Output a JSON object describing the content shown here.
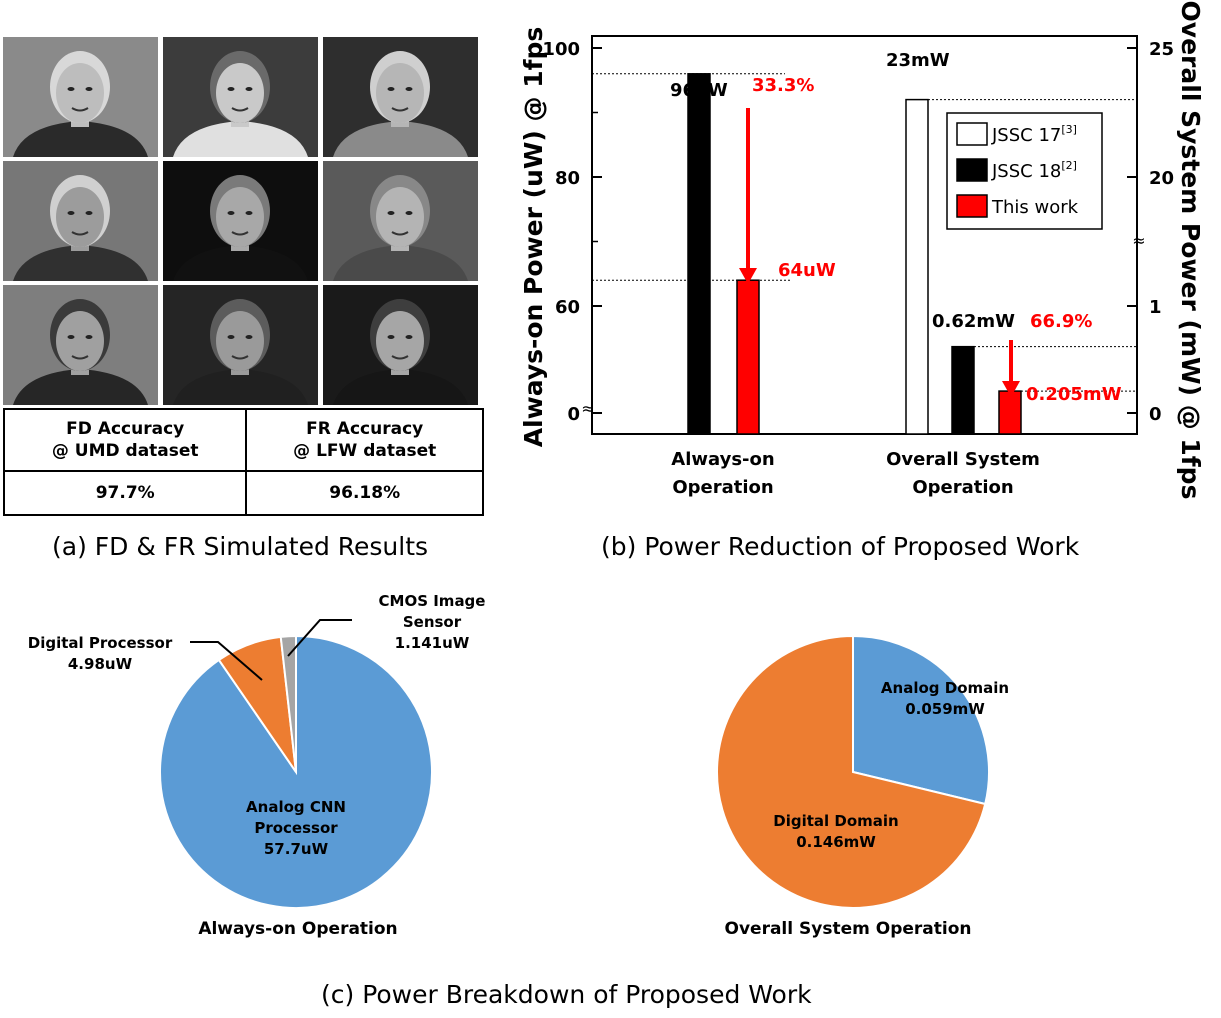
{
  "panel_a": {
    "caption": "(a) FD & FR Simulated Results",
    "faces": [
      {
        "bg": "#8a8a8a",
        "skin": "#bdbdbd",
        "hair": "#d8d8d8",
        "shirt": "#2a2a2a"
      },
      {
        "bg": "#3c3c3c",
        "skin": "#c9c9c9",
        "hair": "#6a6a6a",
        "shirt": "#e0e0e0"
      },
      {
        "bg": "#2e2e2e",
        "skin": "#b6b6b6",
        "hair": "#cfcfcf",
        "shirt": "#8a8a8a"
      },
      {
        "bg": "#777777",
        "skin": "#9c9c9c",
        "hair": "#d0d0d0",
        "shirt": "#303030"
      },
      {
        "bg": "#0e0e0e",
        "skin": "#a8a8a8",
        "hair": "#7a7a7a",
        "shirt": "#111111"
      },
      {
        "bg": "#5a5a5a",
        "skin": "#b4b4b4",
        "hair": "#888888",
        "shirt": "#4a4a4a"
      },
      {
        "bg": "#7e7e7e",
        "skin": "#a0a0a0",
        "hair": "#3a3a3a",
        "shirt": "#262626"
      },
      {
        "bg": "#252525",
        "skin": "#9a9a9a",
        "hair": "#5c5c5c",
        "shirt": "#202020"
      },
      {
        "bg": "#1a1a1a",
        "skin": "#a6a6a6",
        "hair": "#3e3e3e",
        "shirt": "#161616"
      }
    ],
    "table": {
      "headers": [
        [
          "FD Accuracy",
          "@ UMD dataset"
        ],
        [
          "FR Accuracy",
          "@ LFW dataset"
        ]
      ],
      "values": [
        "97.7%",
        "96.18%"
      ]
    }
  },
  "panel_b": {
    "caption": "(b) Power Reduction of Proposed Work",
    "chart_data": {
      "type": "bar",
      "categories": [
        [
          "Always-on",
          "Operation"
        ],
        [
          "Overall System",
          "Operation"
        ]
      ],
      "series": [
        {
          "name": "JSSC 17",
          "sup": "[3]",
          "color": "#ffffff",
          "values": [
            null,
            23
          ]
        },
        {
          "name": "JSSC 18",
          "sup": "[2]",
          "color": "#000000",
          "values": [
            96,
            0.62
          ]
        },
        {
          "name": "This work",
          "sup": "",
          "color": "#ff0000",
          "values": [
            64,
            0.205
          ]
        }
      ],
      "units": [
        "uW",
        "mW"
      ],
      "ylabel_left": "Always-on Power (uW) @ 1fps",
      "ylabel_right": "Overall System Power (mW) @ 1fps",
      "left_ticks": [
        "100",
        "80",
        "60",
        "0"
      ],
      "right_ticks": [
        "25",
        "20",
        "1",
        "0"
      ],
      "axis_breaks": "broken axes (upper 60-100 uW / 20-25 mW, lower 0 / 0-1 mW)",
      "legend_position": "top-right",
      "value_labels": {
        "jssc18_always": "96uW",
        "this_always": "64uW",
        "jssc17_overall": "23mW",
        "jssc18_overall": "0.62mW",
        "this_overall": "0.205mW"
      },
      "reductions": [
        "33.3%",
        "66.9%"
      ],
      "reduction_color": "#ff0000"
    }
  },
  "panel_c": {
    "caption": "(c) Power Breakdown of Proposed Work",
    "chart_data": [
      {
        "type": "pie",
        "title": "Always-on Operation",
        "slices": [
          {
            "label": [
              "Analog CNN",
              "Processor"
            ],
            "value_label": "57.7uW",
            "value": 57.7,
            "color": "#5b9bd5"
          },
          {
            "label": [
              "Digital Processor"
            ],
            "value_label": "4.98uW",
            "value": 4.98,
            "color": "#ed7d31"
          },
          {
            "label": [
              "CMOS Image",
              "Sensor"
            ],
            "value_label": "1.141uW",
            "value": 1.141,
            "color": "#a5a5a5"
          }
        ]
      },
      {
        "type": "pie",
        "title": "Overall System Operation",
        "slices": [
          {
            "label": [
              "Analog Domain"
            ],
            "value_label": "0.059mW",
            "value": 0.059,
            "color": "#5b9bd5"
          },
          {
            "label": [
              "Digital Domain"
            ],
            "value_label": "0.146mW",
            "value": 0.146,
            "color": "#ed7d31"
          }
        ]
      }
    ]
  }
}
